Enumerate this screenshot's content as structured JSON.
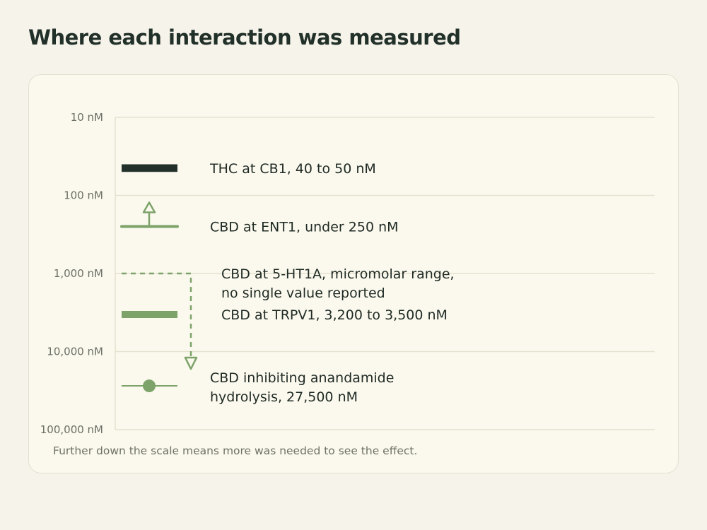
{
  "title": "Where each interaction was measured",
  "footnote": "Further down the scale means more was needed to see the effect.",
  "colors": {
    "dark": "#22302a",
    "green": "#7ea36a",
    "grid": "#e4e1cf",
    "tick_text": "#6b6f66"
  },
  "chart_data": {
    "type": "range",
    "scale": "log",
    "axis_unit": "nM",
    "axis_range": [
      10,
      100000
    ],
    "axis_direction": "increasing downward",
    "ticks": [
      {
        "value": 10,
        "label": "10 nM"
      },
      {
        "value": 100,
        "label": "100 nM"
      },
      {
        "value": 1000,
        "label": "1,000 nM"
      },
      {
        "value": 10000,
        "label": "10,000 nM"
      },
      {
        "value": 100000,
        "label": "100,000 nM"
      }
    ],
    "grid": true,
    "items": [
      {
        "key": "thc-cb1",
        "mark": "range",
        "color": "dark",
        "low": 40,
        "high": 50,
        "label_lines": [
          "THC at CB1, 40 to 50 nM"
        ]
      },
      {
        "key": "cbd-ent1",
        "mark": "upper-bound",
        "color": "green",
        "value": 250,
        "label_lines": [
          "CBD at ENT1, under 250 nM"
        ]
      },
      {
        "key": "cbd-5ht1a",
        "mark": "open-range",
        "color": "green",
        "from": 1000,
        "label_lines": [
          "CBD at 5-HT1A, micromolar range,",
          "no single value reported"
        ]
      },
      {
        "key": "cbd-trpv1",
        "mark": "range",
        "color": "green",
        "low": 3200,
        "high": 3500,
        "label_lines": [
          "CBD at TRPV1, 3,200 to 3,500 nM"
        ]
      },
      {
        "key": "cbd-faah",
        "mark": "point",
        "color": "green",
        "value": 27500,
        "label_lines": [
          "CBD inhibiting anandamide",
          "hydrolysis, 27,500 nM"
        ]
      }
    ]
  }
}
